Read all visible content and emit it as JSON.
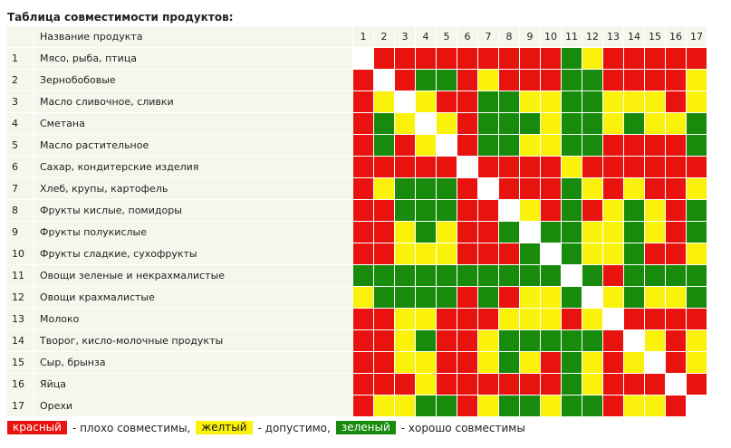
{
  "title": "Таблица совместимости продуктов:",
  "header": {
    "num": "",
    "name": "Название продукта"
  },
  "columns": [
    "1",
    "2",
    "3",
    "4",
    "5",
    "6",
    "7",
    "8",
    "9",
    "10",
    "11",
    "12",
    "13",
    "14",
    "15",
    "16",
    "17"
  ],
  "colors": {
    "R": "#e8130f",
    "Y": "#fbf20c",
    "G": "#188a0c",
    "W": "#ffffff"
  },
  "rows": [
    {
      "num": "1",
      "name": "Мясо, рыба, птица",
      "cells": "WRRRRRRRRRGYRRRRR"
    },
    {
      "num": "2",
      "name": "Зернобобовые",
      "cells": "RWRGGRYRRRGGRRRRY"
    },
    {
      "num": "3",
      "name": "Масло сливочное, сливки",
      "cells": "RYWYRRGGYYGGYYYRY"
    },
    {
      "num": "4",
      "name": "Сметана",
      "cells": "RGYWYRGGGYGGYGYYG"
    },
    {
      "num": "5",
      "name": "Масло растительное",
      "cells": "RGRYWRGGYYGGRRRRG"
    },
    {
      "num": "6",
      "name": "Сахар, кондитерские изделия",
      "cells": "RRRRRWRRRRYRRRRRR"
    },
    {
      "num": "7",
      "name": "Хлеб, крупы, картофель",
      "cells": "RYGGGRWRRRGYRYRRY"
    },
    {
      "num": "8",
      "name": "Фрукты кислые, помидоры",
      "cells": "RRGGGRRWYRGRYGYRG"
    },
    {
      "num": "9",
      "name": "Фрукты полукислые",
      "cells": "RRYGYRRGWGGYYGYRG"
    },
    {
      "num": "10",
      "name": "Фрукты сладкие, сухофрукты",
      "cells": "RRYYYRRRGWGYYGRRY"
    },
    {
      "num": "11",
      "name": "Овощи зеленые и некрахмалистые",
      "cells": "GGGGGGGGGGWGRGGGG"
    },
    {
      "num": "12",
      "name": "Овощи крахмалистые",
      "cells": "YGGGGRGRYYGWYGYYG"
    },
    {
      "num": "13",
      "name": "Молоко",
      "cells": "RRYYRRRYYYRYWRRRR"
    },
    {
      "num": "14",
      "name": "Творог, кисло-молочные продукты",
      "cells": "RRYGRRYGGGGGRWYRY"
    },
    {
      "num": "15",
      "name": "Сыр, брынза",
      "cells": "RRYYRRYGYRGYRYWRY"
    },
    {
      "num": "16",
      "name": "Яйца",
      "cells": "RRRYRRRRRRGYRRRWR"
    },
    {
      "num": "17",
      "name": "Орехи",
      "cells": "RYYGGRYGGYGGRYYRW"
    }
  ],
  "legend": [
    {
      "swatch": "красный",
      "color": "#e8130f",
      "text": "- плохо совместимы,"
    },
    {
      "swatch": "желтый",
      "color": "#fbf20c",
      "text": "- допустимо,"
    },
    {
      "swatch": "зеленый",
      "color": "#188a0c",
      "text": "- хорошо совместимы"
    }
  ]
}
